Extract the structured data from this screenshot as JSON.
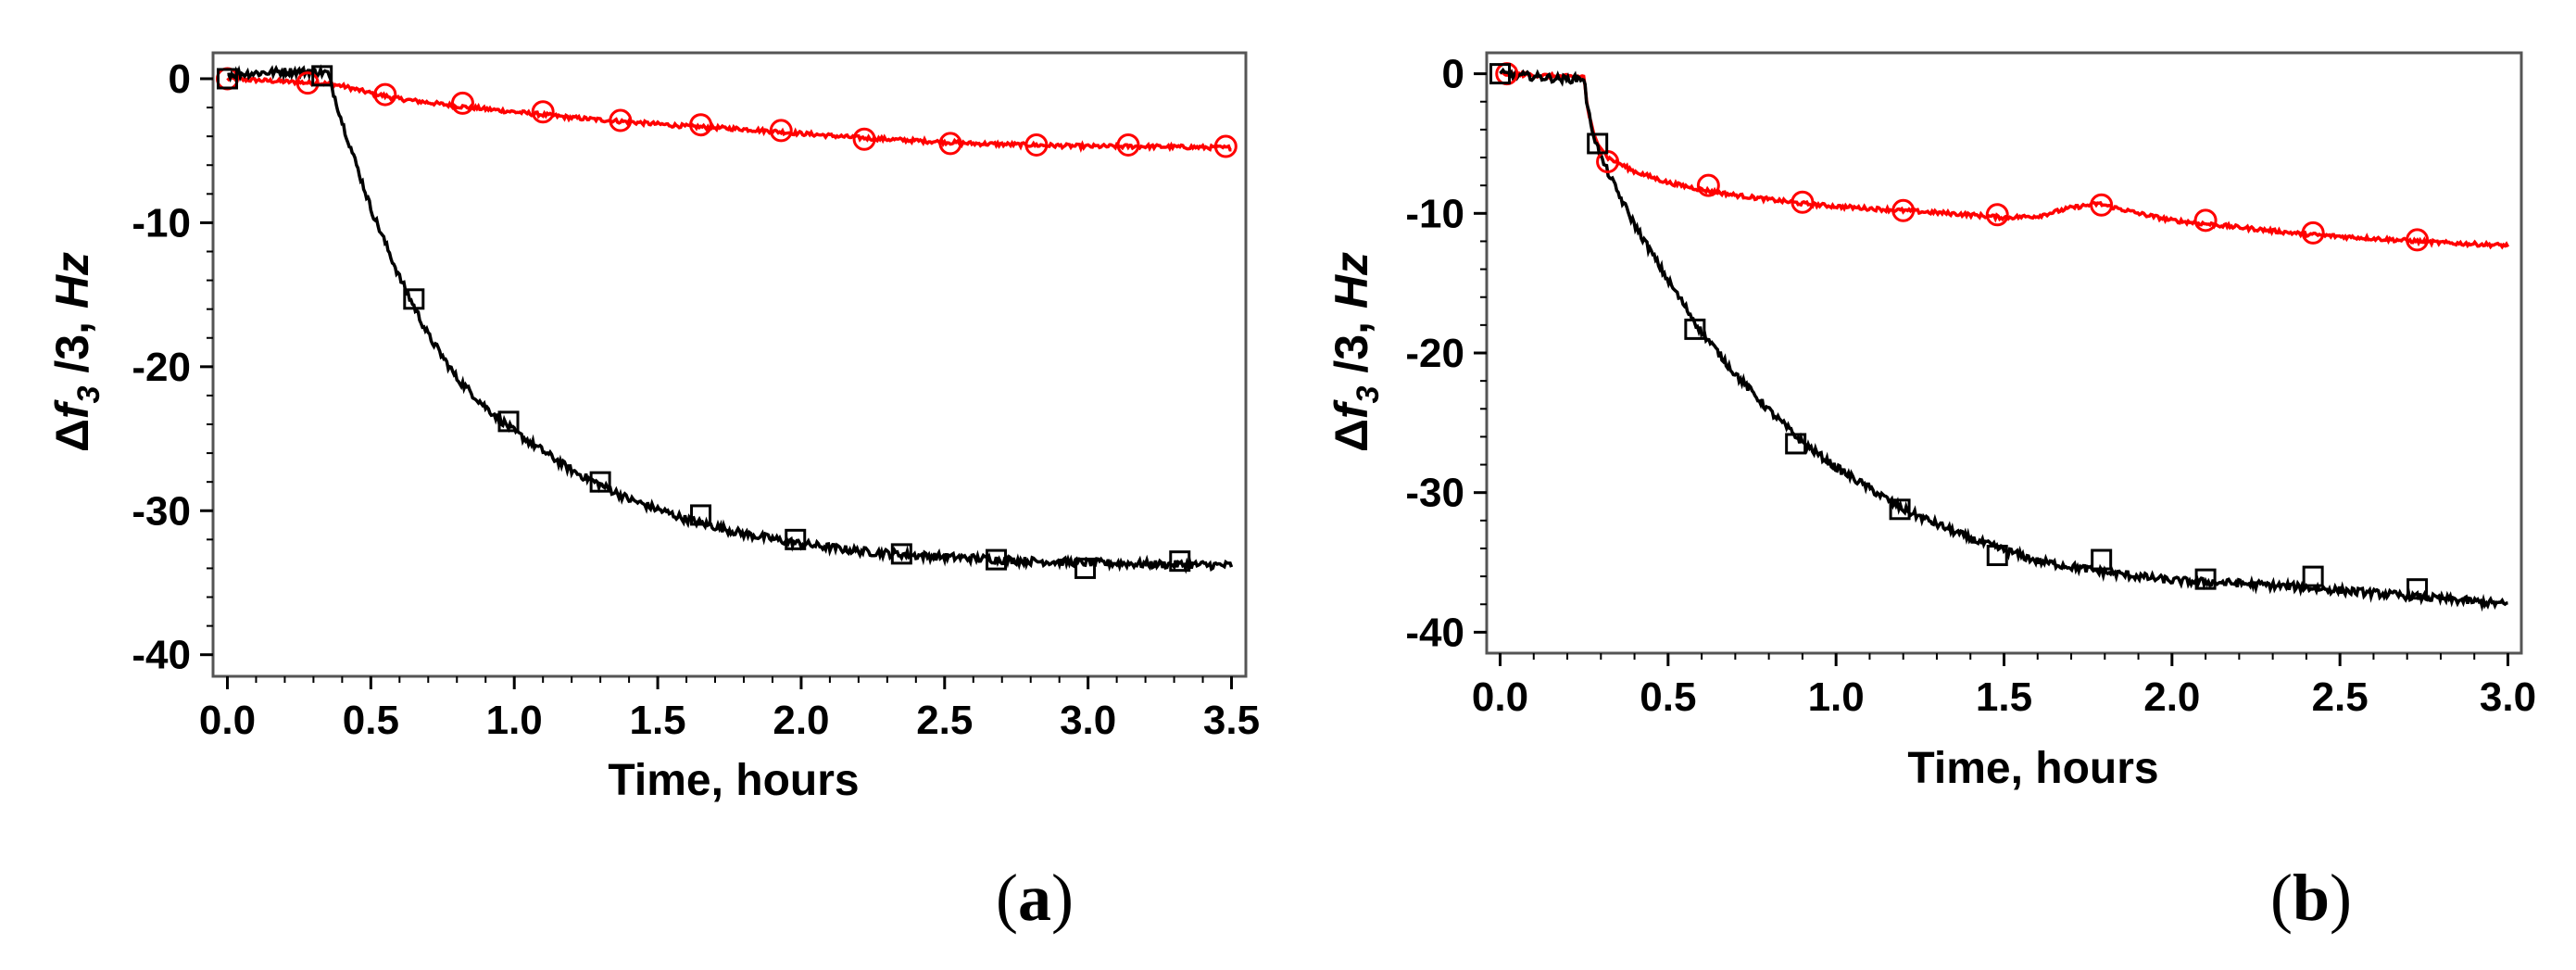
{
  "chart_data": [
    {
      "type": "line",
      "panel_label": "a",
      "xlabel": "Time, hours",
      "ylabel": {
        "delta": "Δ",
        "f": "f",
        "sub": "3",
        "rest": " /3, ",
        "unit": "Hz"
      },
      "xlim": [
        -0.05,
        3.55
      ],
      "ylim": [
        -41.5,
        1.8
      ],
      "xticks": [
        0.0,
        0.5,
        1.0,
        1.5,
        2.0,
        2.5,
        3.0,
        3.5
      ],
      "xtick_labels": [
        "0.0",
        "0.5",
        "1.0",
        "1.5",
        "2.0",
        "2.5",
        "3.0",
        "3.5"
      ],
      "yticks": [
        0,
        -10,
        -20,
        -30,
        -40
      ],
      "ytick_labels": [
        "0",
        "-10",
        "-20",
        "-30",
        "-40"
      ],
      "grid": false,
      "series": [
        {
          "name": "red",
          "color": "#ff0000",
          "marker": "circle",
          "x": [
            0.0,
            0.1,
            0.2,
            0.3,
            0.35,
            0.4,
            0.5,
            0.6,
            0.8,
            1.0,
            1.2,
            1.4,
            1.6,
            1.8,
            2.0,
            2.2,
            2.4,
            2.6,
            2.8,
            3.0,
            3.2,
            3.5
          ],
          "y": [
            0.0,
            -0.1,
            -0.2,
            -0.3,
            -0.35,
            -0.5,
            -1.0,
            -1.4,
            -1.9,
            -2.3,
            -2.7,
            -3.0,
            -3.3,
            -3.5,
            -3.8,
            -4.1,
            -4.3,
            -4.5,
            -4.6,
            -4.7,
            -4.7,
            -4.8
          ],
          "marker_x": [
            0.0,
            0.28,
            0.55,
            0.82,
            1.1,
            1.37,
            1.65,
            1.93,
            2.22,
            2.52,
            2.82,
            3.14,
            3.48
          ],
          "marker_y": [
            0.0,
            -0.3,
            -1.1,
            -1.7,
            -2.3,
            -2.9,
            -3.2,
            -3.6,
            -4.2,
            -4.5,
            -4.6,
            -4.6,
            -4.7
          ]
        },
        {
          "name": "black",
          "color": "#000000",
          "marker": "square",
          "x": [
            0.0,
            0.1,
            0.2,
            0.3,
            0.35,
            0.4,
            0.5,
            0.6,
            0.7,
            0.8,
            0.9,
            1.0,
            1.2,
            1.4,
            1.6,
            1.8,
            2.0,
            2.2,
            2.4,
            2.6,
            2.8,
            3.0,
            3.2,
            3.5
          ],
          "y": [
            0.3,
            0.4,
            0.5,
            0.5,
            0.4,
            -3.0,
            -9.0,
            -13.8,
            -17.8,
            -20.8,
            -22.8,
            -24.5,
            -27.2,
            -29.2,
            -30.6,
            -31.6,
            -32.3,
            -32.8,
            -33.1,
            -33.3,
            -33.5,
            -33.6,
            -33.7,
            -33.8
          ],
          "marker_x": [
            0.0,
            0.33,
            0.65,
            0.98,
            1.3,
            1.65,
            1.98,
            2.35,
            2.68,
            2.99,
            3.32
          ],
          "marker_y": [
            0.0,
            0.2,
            -15.3,
            -23.8,
            -28.0,
            -30.3,
            -32.0,
            -33.0,
            -33.4,
            -34.0,
            -33.5
          ]
        }
      ]
    },
    {
      "type": "line",
      "panel_label": "b",
      "xlabel": "Time, hours",
      "ylabel": {
        "delta": "Δ",
        "f": "f",
        "sub": "3",
        "rest": " /3, ",
        "unit": "Hz"
      },
      "xlim": [
        -0.04,
        3.04
      ],
      "ylim": [
        -41.5,
        1.5
      ],
      "xticks": [
        0.0,
        0.5,
        1.0,
        1.5,
        2.0,
        2.5,
        3.0
      ],
      "xtick_labels": [
        "0.0",
        "0.5",
        "1.0",
        "1.5",
        "2.0",
        "2.5",
        "3.0"
      ],
      "yticks": [
        0,
        -10,
        -20,
        -30,
        -40
      ],
      "ytick_labels": [
        "0",
        "-10",
        "-20",
        "-30",
        "-40"
      ],
      "grid": false,
      "series": [
        {
          "name": "red",
          "color": "#ff0000",
          "marker": "circle",
          "x": [
            0.0,
            0.1,
            0.2,
            0.25,
            0.26,
            0.28,
            0.32,
            0.4,
            0.5,
            0.6,
            0.7,
            0.8,
            0.9,
            1.0,
            1.2,
            1.4,
            1.5,
            1.6,
            1.7,
            1.78,
            1.9,
            2.0,
            2.2,
            2.4,
            2.6,
            2.8,
            3.0
          ],
          "y": [
            0.0,
            -0.1,
            -0.2,
            -0.2,
            -2.5,
            -4.5,
            -6.0,
            -7.0,
            -7.8,
            -8.3,
            -8.7,
            -9.0,
            -9.3,
            -9.5,
            -9.8,
            -10.1,
            -10.3,
            -10.2,
            -9.6,
            -9.3,
            -10.0,
            -10.5,
            -11.0,
            -11.5,
            -11.8,
            -12.1,
            -12.3
          ],
          "marker_x": [
            0.02,
            0.32,
            0.62,
            0.9,
            1.2,
            1.48,
            1.79,
            2.1,
            2.42,
            2.73
          ],
          "marker_y": [
            0.0,
            -6.3,
            -8.0,
            -9.2,
            -9.8,
            -10.1,
            -9.4,
            -10.5,
            -11.4,
            -11.9
          ]
        },
        {
          "name": "black",
          "color": "#000000",
          "marker": "square",
          "x": [
            0.0,
            0.1,
            0.2,
            0.25,
            0.26,
            0.28,
            0.3,
            0.35,
            0.4,
            0.5,
            0.6,
            0.7,
            0.8,
            0.9,
            1.0,
            1.2,
            1.4,
            1.6,
            1.8,
            2.0,
            2.2,
            2.4,
            2.6,
            2.8,
            3.0
          ],
          "y": [
            0.0,
            -0.2,
            -0.4,
            -0.3,
            -2.5,
            -4.5,
            -6.0,
            -8.5,
            -10.8,
            -14.8,
            -18.5,
            -21.5,
            -24.1,
            -26.4,
            -28.2,
            -31.2,
            -33.3,
            -34.9,
            -35.7,
            -36.3,
            -36.5,
            -36.8,
            -37.2,
            -37.6,
            -38.0
          ],
          "marker_x": [
            0.0,
            0.29,
            0.58,
            0.88,
            1.19,
            1.48,
            1.79,
            2.1,
            2.42,
            2.73
          ],
          "marker_y": [
            0.0,
            -5.0,
            -18.3,
            -26.5,
            -31.2,
            -34.5,
            -34.8,
            -36.2,
            -36.0,
            -36.9
          ]
        }
      ]
    }
  ]
}
